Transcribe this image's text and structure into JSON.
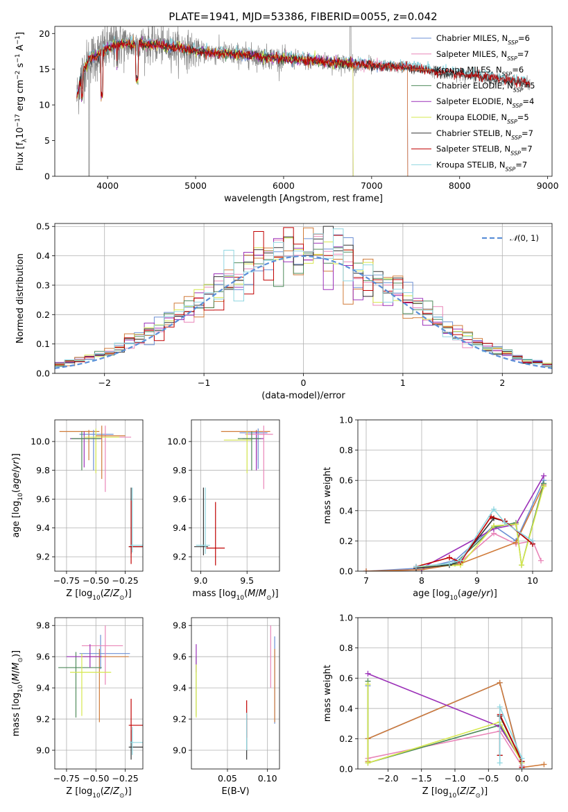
{
  "title": "PLATE=1941, MJD=53386, FIBERID=0055, z=0.042",
  "colors": [
    "#6b8fd4",
    "#e985b8",
    "#d07a38",
    "#4e8a5a",
    "#9b30b8",
    "#d6e84c",
    "#333333",
    "#c00000",
    "#8fd6e0"
  ],
  "legend": [
    "Chabrier MILES, N_SSP=6",
    "Salpeter MILES, N_SSP=7",
    "Kroupa MILES, N_SSP=6",
    "Chabrier ELODIE, N_SSP=5",
    "Salpeter ELODIE, N_SSP=4",
    "Kroupa ELODIE, N_SSP=5",
    "Chabrier STELIB, N_SSP=7",
    "Salpeter STELIB, N_SSP=7",
    "Kroupa STELIB, N_SSP=7"
  ],
  "chart_data": [
    {
      "type": "line",
      "id": "spectrum",
      "title": "PLATE=1941, MJD=53386, FIBERID=0055, z=0.042",
      "xlabel": "wavelength [Angstrom, rest frame]",
      "ylabel": "Flux [f_λ 10^-17 erg cm^-2 s^-1 A^-1]",
      "xlim": [
        3400,
        9050
      ],
      "ylim": [
        0,
        21
      ],
      "xticks": [
        4000,
        5000,
        6000,
        7000,
        8000,
        9000
      ],
      "yticks": [
        0,
        5,
        10,
        15,
        20
      ],
      "grid": false,
      "legend_position": "top-right",
      "series_continuum": {
        "x": [
          3650,
          3700,
          3800,
          3900,
          4000,
          4100,
          4300,
          4500,
          4800,
          5000,
          5500,
          6000,
          6500,
          7000,
          7400,
          7800,
          8200,
          8500,
          8800
        ],
        "y": [
          11,
          14,
          16.5,
          17,
          18,
          18.5,
          18.5,
          18.5,
          18,
          17.5,
          17,
          16.5,
          16,
          15.5,
          15.3,
          14.5,
          14,
          13.5,
          13
        ]
      }
    },
    {
      "type": "step",
      "id": "residual-hist",
      "xlabel": "(data-model)/error",
      "ylabel": "Normed distribution",
      "xlim": [
        -2.5,
        2.5
      ],
      "ylim": [
        0,
        0.51
      ],
      "xticks": [
        -2,
        -1,
        0,
        1,
        2
      ],
      "yticks": [
        0.0,
        0.1,
        0.2,
        0.3,
        0.4,
        0.5
      ],
      "grid": true,
      "legend": "N(0,1)",
      "legend_position": "top-right",
      "bin_width": 0.1
    },
    {
      "type": "scatter-errorbar",
      "id": "age-vs-Z",
      "xlabel": "Z [log10(Z/Z⊙)]",
      "ylabel": "age [log10(age/yr)]",
      "xlim": [
        -0.85,
        -0.1
      ],
      "ylim": [
        9.1,
        10.15
      ],
      "xticks": [
        -0.75,
        -0.5,
        -0.25
      ],
      "yticks": [
        9.2,
        9.4,
        9.6,
        9.8,
        10.0
      ],
      "grid": true,
      "points": [
        {
          "x": -0.56,
          "y": 10.07,
          "xerr": [
            0.25,
            0.09
          ],
          "yerr": [
            0.2,
            0.01
          ],
          "c": 2
        },
        {
          "x": -0.52,
          "y": 10.05,
          "xerr": [
            0.12,
            0.17
          ],
          "yerr": [
            0.25,
            0.03
          ],
          "c": 0
        },
        {
          "x": -0.6,
          "y": 10.02,
          "xerr": [
            0.12,
            0.15
          ],
          "yerr": [
            0.2,
            0.05
          ],
          "c": 4
        },
        {
          "x": -0.42,
          "y": 10.03,
          "xerr": [
            0.02,
            0.22
          ],
          "yerr": [
            0.38,
            0.08
          ],
          "c": 1
        },
        {
          "x": -0.5,
          "y": 10.03,
          "xerr": [
            0.1,
            0.2
          ],
          "yerr": [
            0.25,
            0.06
          ],
          "c": 5
        },
        {
          "x": -0.62,
          "y": 10.02,
          "xerr": [
            0.09,
            0.16
          ],
          "yerr": [
            0.22,
            0.05
          ],
          "c": 3
        },
        {
          "x": -0.45,
          "y": 10.04,
          "xerr": [
            0.05,
            0.2
          ],
          "yerr": [
            0.3,
            0.07
          ],
          "c": 2
        },
        {
          "x": -0.2,
          "y": 9.27,
          "xerr": [
            0.02,
            0.14
          ],
          "yerr": [
            0.05,
            0.41
          ],
          "c": 6
        },
        {
          "x": -0.2,
          "y": 9.27,
          "xerr": [
            0.02,
            0.14
          ],
          "yerr": [
            0.12,
            0.32
          ],
          "c": 7
        },
        {
          "x": -0.19,
          "y": 9.28,
          "xerr": [
            0.02,
            0.12
          ],
          "yerr": [
            0.05,
            0.4
          ],
          "c": 8
        }
      ]
    },
    {
      "type": "scatter-errorbar",
      "id": "age-vs-mass",
      "xlabel": "mass [log10(M/M⊙)]",
      "ylabel": "",
      "xlim": [
        8.9,
        9.85
      ],
      "ylim": [
        9.1,
        10.15
      ],
      "xticks": [
        9.0,
        9.5
      ],
      "yticks": [
        9.2,
        9.4,
        9.6,
        9.8,
        10.0
      ],
      "grid": true,
      "points": [
        {
          "x": 9.6,
          "y": 10.07,
          "xerr": [
            0.38,
            0.15
          ],
          "yerr": [
            0.2,
            0.01
          ],
          "c": 2
        },
        {
          "x": 9.62,
          "y": 10.06,
          "xerr": [
            0.2,
            0.1
          ],
          "yerr": [
            0.25,
            0.03
          ],
          "c": 0
        },
        {
          "x": 9.6,
          "y": 10.02,
          "xerr": [
            0.15,
            0.08
          ],
          "yerr": [
            0.22,
            0.05
          ],
          "c": 4
        },
        {
          "x": 9.68,
          "y": 10.05,
          "xerr": [
            0.2,
            0.1
          ],
          "yerr": [
            0.38,
            0.06
          ],
          "c": 1
        },
        {
          "x": 9.5,
          "y": 10.01,
          "xerr": [
            0.25,
            0.05
          ],
          "yerr": [
            0.23,
            0.06
          ],
          "c": 5
        },
        {
          "x": 9.55,
          "y": 10.02,
          "xerr": [
            0.15,
            0.1
          ],
          "yerr": [
            0.22,
            0.05
          ],
          "c": 3
        },
        {
          "x": 9.03,
          "y": 9.27,
          "xerr": [
            0.1,
            0.05
          ],
          "yerr": [
            0.06,
            0.41
          ],
          "c": 6
        },
        {
          "x": 9.16,
          "y": 9.26,
          "xerr": [
            0.1,
            0.1
          ],
          "yerr": [
            0.12,
            0.32
          ],
          "c": 7
        },
        {
          "x": 9.05,
          "y": 9.28,
          "xerr": [
            0.1,
            0.05
          ],
          "yerr": [
            0.06,
            0.4
          ],
          "c": 8
        }
      ]
    },
    {
      "type": "line",
      "id": "massweight-vs-age",
      "xlabel": "age [log10(age/yr)]",
      "ylabel": "mass weight",
      "xlim": [
        6.85,
        10.35
      ],
      "ylim": [
        0,
        1
      ],
      "xticks": [
        7,
        8,
        9,
        10
      ],
      "yticks": [
        0.0,
        0.2,
        0.4,
        0.6,
        0.8,
        1.0
      ],
      "grid": true,
      "series": [
        {
          "c": 0,
          "x": [
            7.0,
            8.0,
            8.6,
            9.3,
            9.7,
            10.2
          ],
          "y": [
            0.0,
            0.02,
            0.07,
            0.3,
            0.2,
            0.6
          ]
        },
        {
          "c": 1,
          "x": [
            7.0,
            8.0,
            8.7,
            9.3,
            9.7,
            10.0,
            10.15
          ],
          "y": [
            0.0,
            0.01,
            0.06,
            0.25,
            0.18,
            0.2,
            0.07
          ]
        },
        {
          "c": 2,
          "x": [
            7.0,
            8.0,
            8.7,
            9.7,
            10.2
          ],
          "y": [
            0.0,
            0.01,
            0.05,
            0.19,
            0.57
          ]
        },
        {
          "c": 3,
          "x": [
            8.0,
            8.6,
            9.3,
            9.7,
            9.8,
            10.2
          ],
          "y": [
            0.02,
            0.05,
            0.29,
            0.32,
            0.04,
            0.58
          ]
        },
        {
          "c": 4,
          "x": [
            8.0,
            9.3,
            9.7,
            10.2
          ],
          "y": [
            0.02,
            0.28,
            0.31,
            0.63
          ]
        },
        {
          "c": 5,
          "x": [
            8.0,
            8.7,
            9.3,
            9.7,
            9.8,
            10.2
          ],
          "y": [
            0.03,
            0.04,
            0.3,
            0.31,
            0.04,
            0.56
          ]
        },
        {
          "c": 6,
          "x": [
            7.9,
            8.5,
            8.7,
            9.3,
            9.5,
            10.0
          ],
          "y": [
            0.02,
            0.04,
            0.07,
            0.35,
            0.33,
            0.18
          ]
        },
        {
          "c": 7,
          "x": [
            7.9,
            8.5,
            8.7,
            9.25,
            9.5,
            10.0
          ],
          "y": [
            0.03,
            0.09,
            0.06,
            0.36,
            0.33,
            0.18
          ]
        },
        {
          "c": 8,
          "x": [
            7.9,
            8.5,
            8.7,
            9.3,
            9.5,
            10.0
          ],
          "y": [
            0.03,
            0.05,
            0.07,
            0.41,
            0.32,
            0.2
          ]
        }
      ]
    },
    {
      "type": "scatter-errorbar",
      "id": "mass-vs-Z",
      "xlabel": "Z [log10(Z/Z⊙)]",
      "ylabel": "mass [log10(M/M⊙)]",
      "xlim": [
        -0.85,
        -0.1
      ],
      "ylim": [
        8.88,
        9.85
      ],
      "xticks": [
        -0.75,
        -0.5,
        -0.25
      ],
      "yticks": [
        9.0,
        9.2,
        9.4,
        9.6,
        9.8
      ],
      "grid": true,
      "points": [
        {
          "x": -0.46,
          "y": 9.62,
          "xerr": [
            0.18,
            0.25
          ],
          "yerr": [
            0.1,
            0.12
          ],
          "c": 0
        },
        {
          "x": -0.42,
          "y": 9.67,
          "xerr": [
            0.2,
            0.15
          ],
          "yerr": [
            0.25,
            0.13
          ],
          "c": 1
        },
        {
          "x": -0.47,
          "y": 9.6,
          "xerr": [
            0.15,
            0.25
          ],
          "yerr": [
            0.42,
            0.05
          ],
          "c": 2
        },
        {
          "x": -0.67,
          "y": 9.53,
          "xerr": [
            0.15,
            0.22
          ],
          "yerr": [
            0.32,
            0.1
          ],
          "c": 3
        },
        {
          "x": -0.55,
          "y": 9.6,
          "xerr": [
            0.2,
            0.1
          ],
          "yerr": [
            0.07,
            0.08
          ],
          "c": 4
        },
        {
          "x": -0.62,
          "y": 9.5,
          "xerr": [
            0.1,
            0.25
          ],
          "yerr": [
            0.28,
            0.12
          ],
          "c": 5
        },
        {
          "x": -0.2,
          "y": 9.02,
          "xerr": [
            0.02,
            0.14
          ],
          "yerr": [
            0.08,
            0.11
          ],
          "c": 6
        },
        {
          "x": -0.2,
          "y": 9.16,
          "xerr": [
            0.02,
            0.12
          ],
          "yerr": [
            0.1,
            0.17
          ],
          "c": 7
        },
        {
          "x": -0.19,
          "y": 9.05,
          "xerr": [
            0.02,
            0.12
          ],
          "yerr": [
            0.08,
            0.1
          ],
          "c": 8
        }
      ]
    },
    {
      "type": "scatter-errorbar",
      "id": "mass-vs-ebv",
      "xlabel": "E(B-V)",
      "ylabel": "",
      "xlim": [
        0.005,
        0.115
      ],
      "ylim": [
        8.88,
        9.85
      ],
      "xticks": [
        0.05,
        0.1
      ],
      "yticks": [
        9.0,
        9.2,
        9.4,
        9.6,
        9.8
      ],
      "grid": true,
      "points": [
        {
          "x": 0.109,
          "y": 9.6,
          "yerr": [
            0.43,
            0.13
          ],
          "c": 0
        },
        {
          "x": 0.104,
          "y": 9.6,
          "yerr": [
            0.2,
            0.2
          ],
          "c": 1
        },
        {
          "x": 0.109,
          "y": 9.55,
          "yerr": [
            0.37,
            0.1
          ],
          "c": 2
        },
        {
          "x": 0.011,
          "y": 9.5,
          "yerr": [
            0.28,
            0.1
          ],
          "c": 3
        },
        {
          "x": 0.011,
          "y": 9.55,
          "yerr": [
            0.05,
            0.13
          ],
          "c": 4
        },
        {
          "x": 0.011,
          "y": 9.45,
          "yerr": [
            0.24,
            0.1
          ],
          "c": 5
        },
        {
          "x": 0.074,
          "y": 9.05,
          "yerr": [
            0.11,
            0.18
          ],
          "c": 6
        },
        {
          "x": 0.074,
          "y": 9.2,
          "yerr": [
            0.12,
            0.12
          ],
          "c": 7
        },
        {
          "x": 0.074,
          "y": 9.1,
          "yerr": [
            0.1,
            0.14
          ],
          "c": 8
        }
      ]
    },
    {
      "type": "line",
      "id": "massweight-vs-Z",
      "xlabel": "Z [log10(Z/Z⊙)]",
      "ylabel": "mass weight",
      "xlim": [
        -2.45,
        0.45
      ],
      "ylim": [
        0,
        1
      ],
      "xticks": [
        -2.0,
        -1.5,
        -1.0,
        -0.5,
        0.0
      ],
      "yticks": [
        0.0,
        0.2,
        0.4,
        0.6,
        0.8,
        1.0
      ],
      "grid": true,
      "series": [
        {
          "c": 0,
          "x": [
            -2.3,
            -2.3,
            -0.33,
            0.0
          ],
          "y": [
            0.55,
            0.2,
            0.57,
            0.02
          ]
        },
        {
          "c": 1,
          "x": [
            -2.3,
            -0.33,
            0.0
          ],
          "y": [
            0.07,
            0.25,
            0.02
          ]
        },
        {
          "c": 2,
          "x": [
            -2.3,
            -2.3,
            -0.33,
            0.0,
            0.33
          ],
          "y": [
            0.05,
            0.2,
            0.57,
            0.01,
            0.03
          ]
        },
        {
          "c": 3,
          "x": [
            -2.3,
            -2.3,
            -0.33,
            0.0
          ],
          "y": [
            0.58,
            0.04,
            0.29,
            0.05
          ]
        },
        {
          "c": 4,
          "x": [
            -2.3,
            -0.33,
            0.0
          ],
          "y": [
            0.63,
            0.28,
            0.05
          ]
        },
        {
          "c": 5,
          "x": [
            -2.3,
            -2.3,
            -0.33,
            0.0
          ],
          "y": [
            0.56,
            0.04,
            0.31,
            0.04
          ]
        },
        {
          "c": 6,
          "x": [
            -0.33,
            -0.33,
            0.0,
            0.0
          ],
          "y": [
            0.09,
            0.35,
            0.05,
            0.0
          ]
        },
        {
          "c": 7,
          "x": [
            -0.33,
            -0.33,
            0.0,
            0.0
          ],
          "y": [
            0.09,
            0.36,
            0.05,
            0.01
          ]
        },
        {
          "c": 8,
          "x": [
            -0.33,
            -0.33,
            0.0,
            0.0
          ],
          "y": [
            0.04,
            0.41,
            0.07,
            0.0
          ]
        }
      ]
    }
  ]
}
